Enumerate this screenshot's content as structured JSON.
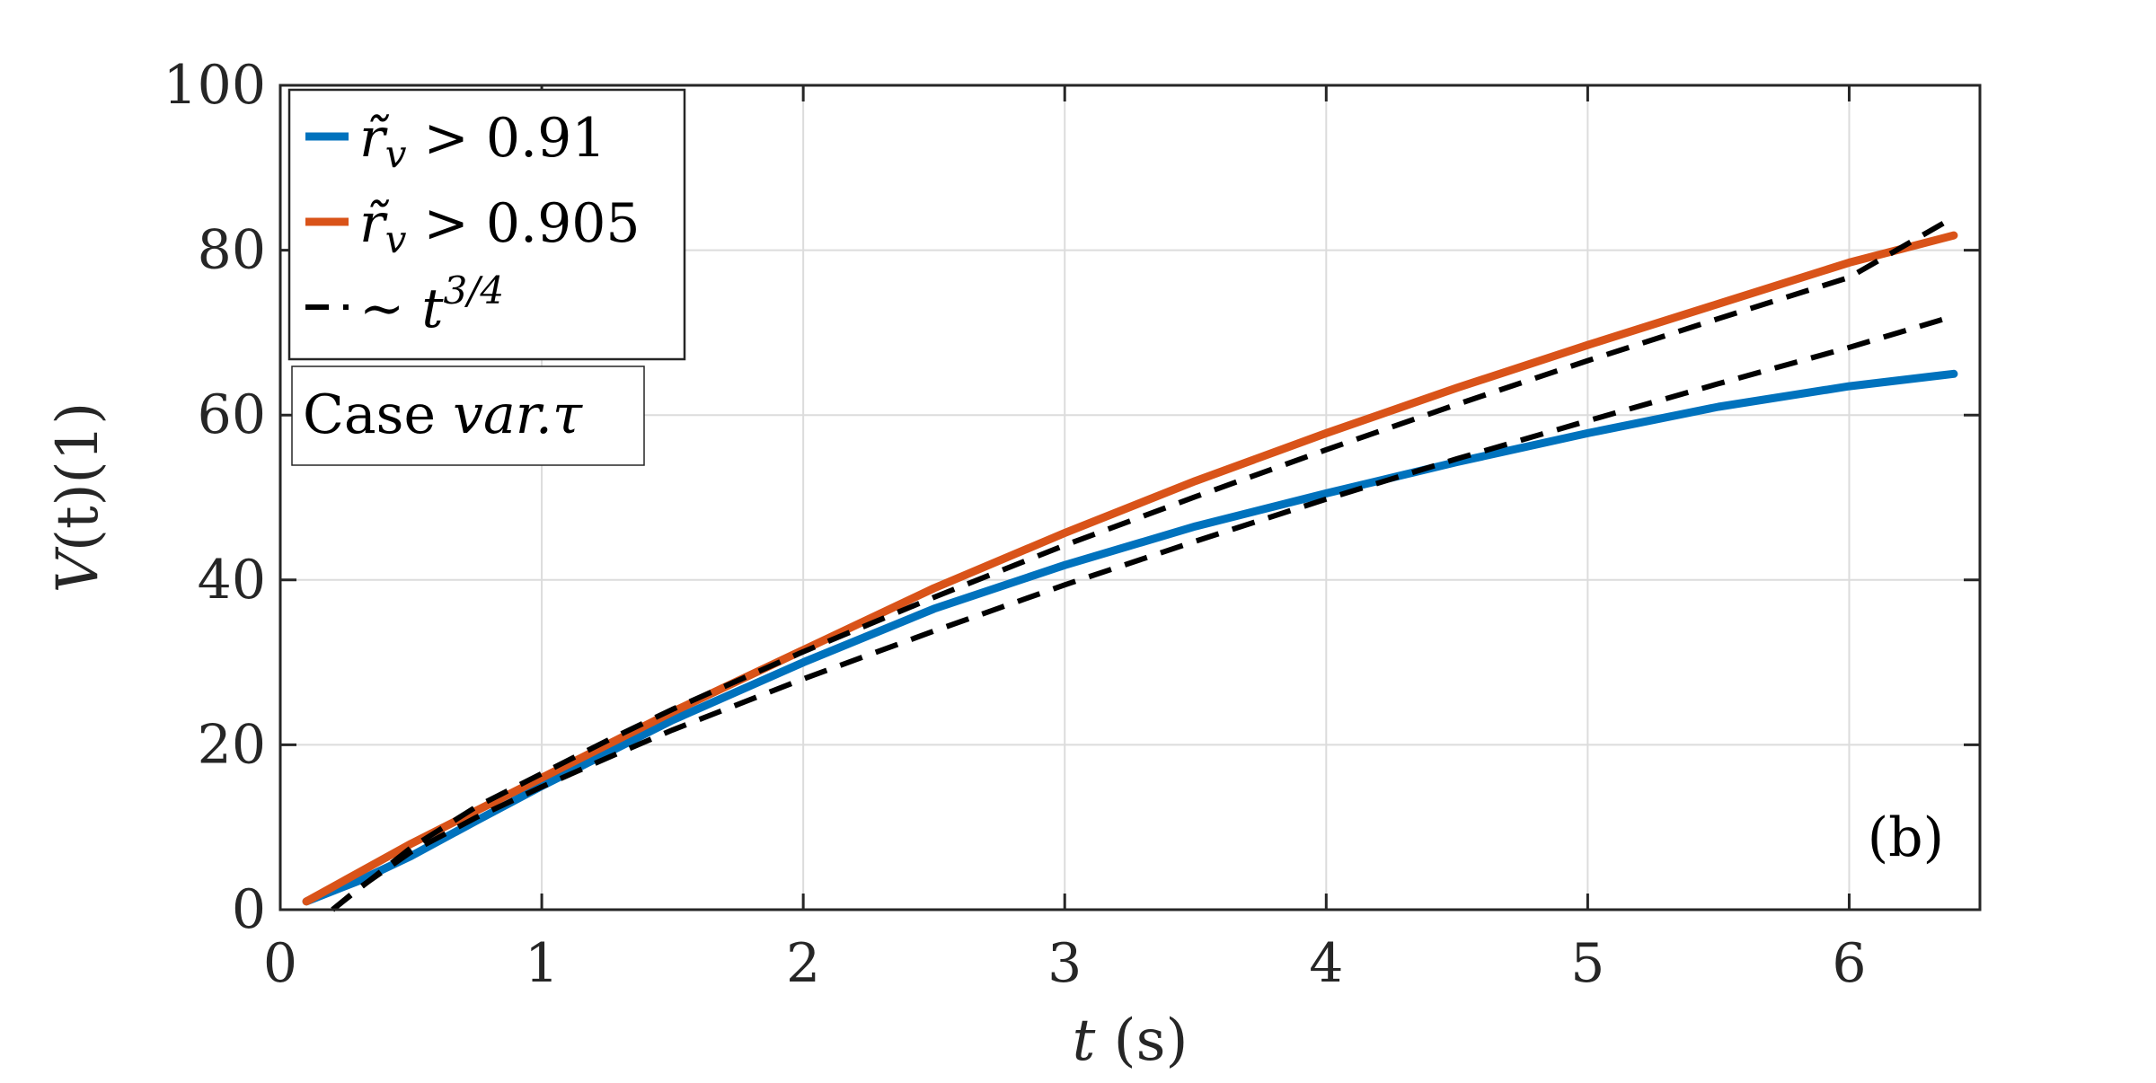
{
  "chart_data": {
    "type": "line",
    "xlabel": {
      "var": "t",
      "unit": "(s)"
    },
    "ylabel": {
      "var": "V",
      "arg": "(t)",
      "unit": "(1)"
    },
    "xlim": [
      0,
      6.5
    ],
    "ylim": [
      0,
      100
    ],
    "xticks": [
      0,
      1,
      2,
      3,
      4,
      5,
      6
    ],
    "yticks": [
      0,
      20,
      40,
      60,
      80,
      100
    ],
    "grid": true,
    "legend_position": "top-left",
    "series": [
      {
        "name": "r̃ᵥ > 0.91",
        "name_parts": {
          "main": "r̃",
          "sub": "v",
          "rest": " > 0.91"
        },
        "color": "#0072BD",
        "style": "solid",
        "x": [
          0.1,
          0.3,
          0.5,
          0.75,
          1.0,
          1.25,
          1.5,
          2.0,
          2.5,
          3.0,
          3.5,
          4.0,
          4.5,
          5.0,
          5.5,
          6.0,
          6.4
        ],
        "y": [
          1.0,
          3.5,
          6.5,
          10.8,
          15.0,
          19.0,
          23.0,
          30.0,
          36.5,
          41.8,
          46.5,
          50.5,
          54.3,
          57.8,
          61.0,
          63.5,
          65.0
        ]
      },
      {
        "name": "r̃ᵥ > 0.905",
        "name_parts": {
          "main": "r̃",
          "sub": "v",
          "rest": " > 0.905"
        },
        "color": "#D95319",
        "style": "solid",
        "x": [
          0.1,
          0.3,
          0.5,
          0.75,
          1.0,
          1.25,
          1.5,
          2.0,
          2.5,
          3.0,
          3.5,
          4.0,
          4.5,
          5.0,
          5.5,
          6.0,
          6.4
        ],
        "y": [
          1.0,
          4.5,
          8.0,
          12.0,
          16.0,
          20.0,
          24.0,
          31.5,
          39.0,
          45.7,
          52.0,
          57.8,
          63.3,
          68.5,
          73.5,
          78.5,
          81.8
        ]
      },
      {
        "name": "∼ t^{3/4}",
        "name_parts": {
          "main": "∼ t",
          "sup": "3/4"
        },
        "color": "#000000",
        "style": "dashed",
        "x": [
          0.2,
          0.3,
          0.5,
          0.75,
          1.0,
          1.25,
          1.5,
          2.0,
          2.5,
          3.0,
          3.5,
          4.0,
          4.5,
          5.0,
          5.5,
          6.0,
          6.4
        ],
        "y": [
          0.0,
          2.5,
          7.5,
          12.5,
          16.5,
          20.5,
          24.3,
          31.3,
          37.9,
          44.2,
          50.1,
          55.8,
          61.3,
          66.6,
          71.7,
          76.7,
          84.0
        ]
      },
      {
        "name": "",
        "color": "#000000",
        "style": "dashed",
        "x": [
          0.2,
          0.3,
          0.5,
          0.75,
          1.0,
          1.25,
          1.5,
          2.0,
          2.5,
          3.0,
          3.5,
          4.0,
          4.5,
          5.0,
          5.5,
          6.0,
          6.4
        ],
        "y": [
          0.0,
          2.6,
          7.0,
          11.2,
          14.9,
          18.4,
          21.8,
          28.0,
          33.8,
          39.4,
          44.7,
          49.8,
          54.7,
          59.3,
          63.8,
          68.2,
          72.0
        ]
      }
    ],
    "annotations": [
      {
        "text_parts": {
          "plain": "Case ",
          "italic": "var.τ"
        },
        "position": "below-legend"
      },
      {
        "text": "(b)",
        "position": "bottom-right"
      }
    ]
  }
}
